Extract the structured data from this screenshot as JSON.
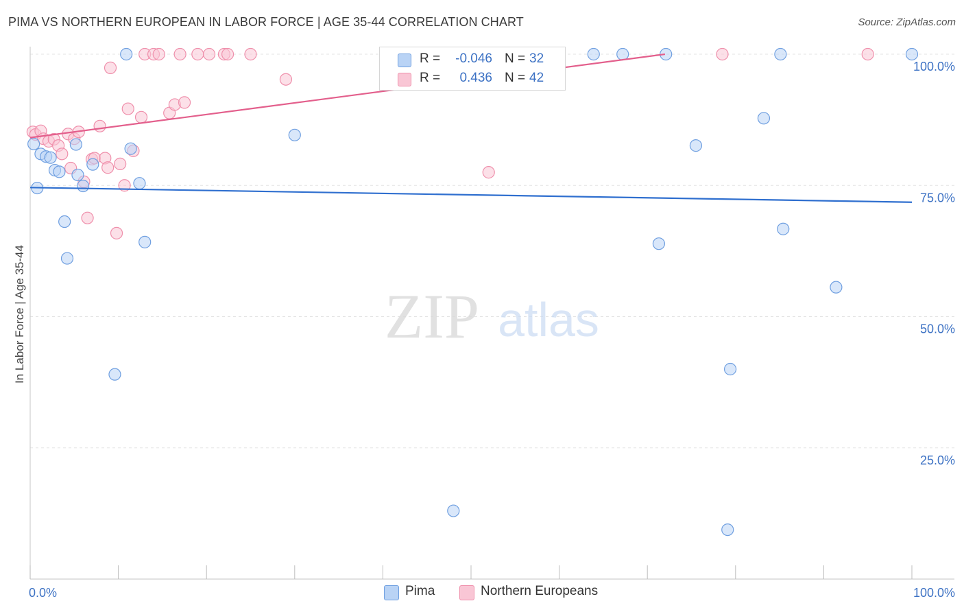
{
  "header": {
    "title": "PIMA VS NORTHERN EUROPEAN IN LABOR FORCE | AGE 35-44 CORRELATION CHART",
    "source": "Source: ZipAtlas.com"
  },
  "watermark": {
    "zip": "ZIP",
    "atlas": "atlas"
  },
  "legend": {
    "r_label": "R =",
    "n_label": "N =",
    "pima": {
      "r": "-0.046",
      "n": "32"
    },
    "northern": {
      "r": "0.436",
      "n": "42"
    }
  },
  "bottom_legend": {
    "pima": "Pima",
    "northern": "Northern Europeans"
  },
  "colors": {
    "pima_fill": "#b9d3f5",
    "pima_stroke": "#6f9fe0",
    "pima_line": "#2f6fcf",
    "northern_fill": "#f9c6d5",
    "northern_stroke": "#ef8fab",
    "northern_line": "#e35f8c",
    "tick_text": "#3d72c4"
  },
  "chart_data": {
    "type": "scatter",
    "title": "PIMA VS NORTHERN EUROPEAN IN LABOR FORCE | AGE 35-44 CORRELATION CHART",
    "xlabel": "",
    "ylabel": "In Labor Force | Age 35-44",
    "xlim": [
      0,
      100
    ],
    "ylim": [
      0,
      100
    ],
    "x_tick_labels": [
      "0.0%",
      "100.0%"
    ],
    "y_tick_labels": [
      "100.0%",
      "75.0%",
      "50.0%",
      "25.0%"
    ],
    "y_tick_values": [
      100,
      75,
      50,
      25
    ],
    "grid": true,
    "legend_position": "top-center",
    "series": [
      {
        "name": "Pima",
        "r": -0.046,
        "n": 32,
        "trend": {
          "x": [
            0,
            100
          ],
          "y": [
            74.6,
            71.8
          ]
        },
        "points": [
          [
            0.4,
            82.9
          ],
          [
            0.8,
            74.5
          ],
          [
            1.2,
            81.0
          ],
          [
            1.8,
            80.5
          ],
          [
            2.3,
            80.3
          ],
          [
            2.8,
            77.9
          ],
          [
            3.3,
            77.6
          ],
          [
            3.9,
            68.1
          ],
          [
            4.2,
            61.1
          ],
          [
            5.2,
            82.8
          ],
          [
            5.4,
            77.0
          ],
          [
            6.0,
            74.9
          ],
          [
            7.1,
            79.0
          ],
          [
            9.6,
            39.0
          ],
          [
            10.9,
            100.0
          ],
          [
            11.4,
            82.0
          ],
          [
            12.4,
            75.4
          ],
          [
            13.0,
            64.2
          ],
          [
            30.0,
            84.6
          ],
          [
            48.0,
            13.0
          ],
          [
            63.9,
            100.0
          ],
          [
            67.2,
            100.0
          ],
          [
            71.3,
            63.9
          ],
          [
            72.1,
            100.0
          ],
          [
            75.5,
            82.6
          ],
          [
            79.1,
            9.4
          ],
          [
            79.4,
            40.0
          ],
          [
            83.2,
            87.8
          ],
          [
            85.1,
            100.0
          ],
          [
            85.4,
            66.7
          ],
          [
            91.4,
            55.6
          ],
          [
            100.0,
            100.0
          ]
        ]
      },
      {
        "name": "Northern Europeans",
        "r": 0.436,
        "n": 42,
        "trend": {
          "x": [
            0,
            72
          ],
          "y": [
            84.1,
            100.0
          ]
        },
        "points": [
          [
            0.3,
            85.2
          ],
          [
            0.6,
            84.7
          ],
          [
            1.2,
            85.4
          ],
          [
            1.5,
            83.9
          ],
          [
            2.1,
            83.4
          ],
          [
            2.7,
            83.8
          ],
          [
            3.2,
            82.6
          ],
          [
            3.6,
            81.0
          ],
          [
            4.3,
            84.8
          ],
          [
            4.6,
            78.3
          ],
          [
            5.0,
            83.9
          ],
          [
            5.5,
            85.2
          ],
          [
            6.1,
            75.7
          ],
          [
            6.5,
            68.8
          ],
          [
            7.0,
            80.0
          ],
          [
            7.3,
            80.2
          ],
          [
            7.9,
            86.3
          ],
          [
            8.5,
            80.2
          ],
          [
            8.8,
            78.4
          ],
          [
            9.1,
            97.4
          ],
          [
            9.8,
            65.9
          ],
          [
            10.2,
            79.1
          ],
          [
            10.7,
            75.0
          ],
          [
            11.1,
            89.6
          ],
          [
            11.7,
            81.6
          ],
          [
            12.6,
            88.0
          ],
          [
            13.0,
            100.0
          ],
          [
            14.0,
            100.0
          ],
          [
            14.6,
            100.0
          ],
          [
            15.8,
            88.8
          ],
          [
            16.4,
            90.4
          ],
          [
            17.0,
            100.0
          ],
          [
            17.5,
            90.8
          ],
          [
            19.0,
            100.0
          ],
          [
            20.3,
            100.0
          ],
          [
            22.0,
            100.0
          ],
          [
            22.4,
            100.0
          ],
          [
            25.0,
            100.0
          ],
          [
            29.0,
            95.2
          ],
          [
            52.0,
            77.5
          ],
          [
            78.5,
            100.0
          ],
          [
            95.0,
            100.0
          ]
        ]
      }
    ]
  }
}
